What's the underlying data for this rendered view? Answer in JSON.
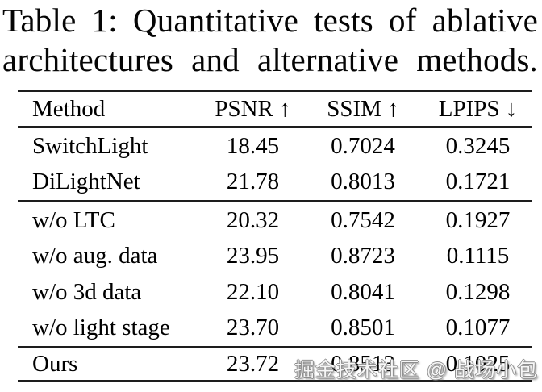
{
  "caption": {
    "line1": "Table 1: Quantitative tests of ablative",
    "line2": "architectures and alternative methods."
  },
  "table": {
    "columns": [
      "Method",
      "PSNR ↑",
      "SSIM ↑",
      "LPIPS ↓"
    ],
    "rows": [
      {
        "cells": [
          "SwitchLight",
          "18.45",
          "0.7024",
          "0.3245"
        ]
      },
      {
        "cells": [
          "DiLightNet",
          "21.78",
          "0.8013",
          "0.1721"
        ]
      },
      {
        "cells": [
          "w/o LTC",
          "20.32",
          "0.7542",
          "0.1927"
        ]
      },
      {
        "cells": [
          "w/o aug. data",
          "23.95",
          "0.8723",
          "0.1115"
        ]
      },
      {
        "cells": [
          "w/o 3d data",
          "22.10",
          "0.8041",
          "0.1298"
        ]
      },
      {
        "cells": [
          "w/o light stage",
          "23.70",
          "0.8501",
          "0.1077"
        ]
      },
      {
        "cells": [
          "Ours",
          "23.72",
          "0.8513",
          "0.1025"
        ]
      }
    ]
  },
  "watermark": {
    "text": "掘金技术社区 @ 战场小包"
  },
  "colors": {
    "background": "#ffffff",
    "text": "#050505",
    "rule": "#1d1d1d",
    "watermark_fill": "#f5f5f5",
    "watermark_outline": "#8d8d8d"
  }
}
